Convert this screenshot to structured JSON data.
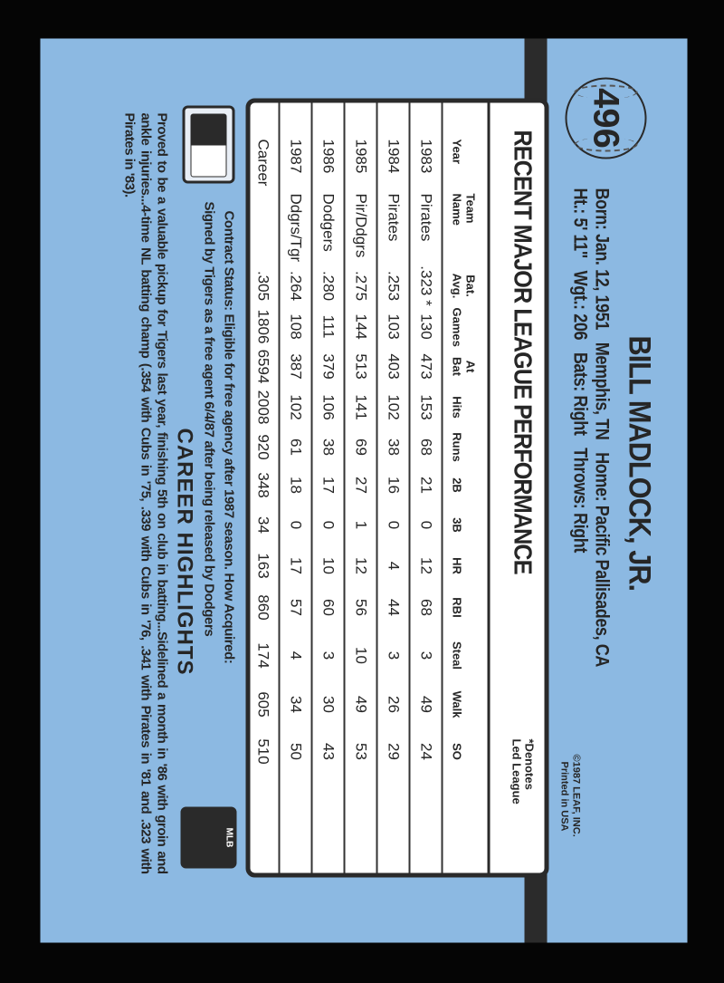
{
  "card": {
    "number": "496",
    "player_name": "BILL MADLOCK, JR.",
    "bio_line1": "Born: Jan. 12, 1951   Memphis, TN   Home: Pacific Pallisades, CA",
    "bio_line2": "Ht.: 5' 11\"   Wgt.: 206   Bats: Right   Throws: Right",
    "copyright_line1": "©1987 LEAF, INC.",
    "copyright_line2": "Printed in USA",
    "colors": {
      "background": "#8cb9e2",
      "ink": "#262626",
      "table": "#ffffff"
    }
  },
  "stats": {
    "title": "RECENT MAJOR LEAGUE PERFORMANCE",
    "note_line1": "*Denotes",
    "note_line2": "Led League",
    "headers": [
      [
        "",
        "Year"
      ],
      [
        "Team",
        "Name"
      ],
      [
        "Bat.",
        "Avg."
      ],
      [
        "",
        "Games"
      ],
      [
        "At",
        "Bat"
      ],
      [
        "",
        "Hits"
      ],
      [
        "",
        "Runs"
      ],
      [
        "",
        "2B"
      ],
      [
        "",
        "3B"
      ],
      [
        "",
        "HR"
      ],
      [
        "",
        "RBI"
      ],
      [
        "",
        "Steal"
      ],
      [
        "",
        "Walk"
      ],
      [
        "",
        "SO"
      ]
    ],
    "rows": [
      [
        "1983",
        "Pirates",
        ".323 *",
        "130",
        "473",
        "153",
        "68",
        "21",
        "0",
        "12",
        "68",
        "3",
        "49",
        "24"
      ],
      [
        "1984",
        "Pirates",
        ".253",
        "103",
        "403",
        "102",
        "38",
        "16",
        "0",
        "4",
        "44",
        "3",
        "26",
        "29"
      ],
      [
        "1985",
        "Pir/Ddgrs",
        ".275",
        "144",
        "513",
        "141",
        "69",
        "27",
        "1",
        "12",
        "56",
        "10",
        "49",
        "53"
      ],
      [
        "1986",
        "Dodgers",
        ".280",
        "111",
        "379",
        "106",
        "38",
        "17",
        "0",
        "10",
        "60",
        "3",
        "30",
        "43"
      ],
      [
        "1987",
        "Ddgrs/Tgr",
        ".264",
        "108",
        "387",
        "102",
        "61",
        "18",
        "0",
        "17",
        "57",
        "4",
        "34",
        "50"
      ],
      [
        "Career",
        "",
        ".305",
        "1806",
        "6594",
        "2008",
        "920",
        "348",
        "34",
        "163",
        "860",
        "174",
        "605",
        "510"
      ]
    ]
  },
  "contract": {
    "line1": "Contract Status: Eligible for free agency after 1987 season. How Acquired:",
    "line2": "Signed by Tigers as a free agent 6/4/87 after being released by Dodgers"
  },
  "highlights": {
    "title": "CAREER HIGHLIGHTS",
    "text": "Proved to be a valuable pickup for Tigers last year, finishing 5th on club in batting...Sidelined a month in '86 with groin and ankle injuries...4-time NL batting champ (.354 with Cubs in '75, .339 with Cubs in '76, .341 with Pirates in '81 and .323 with Pirates in '83)."
  },
  "logos": {
    "left": "mlb-logo",
    "right": "mlbpa-logo",
    "mlbpa_text": "MLB"
  }
}
